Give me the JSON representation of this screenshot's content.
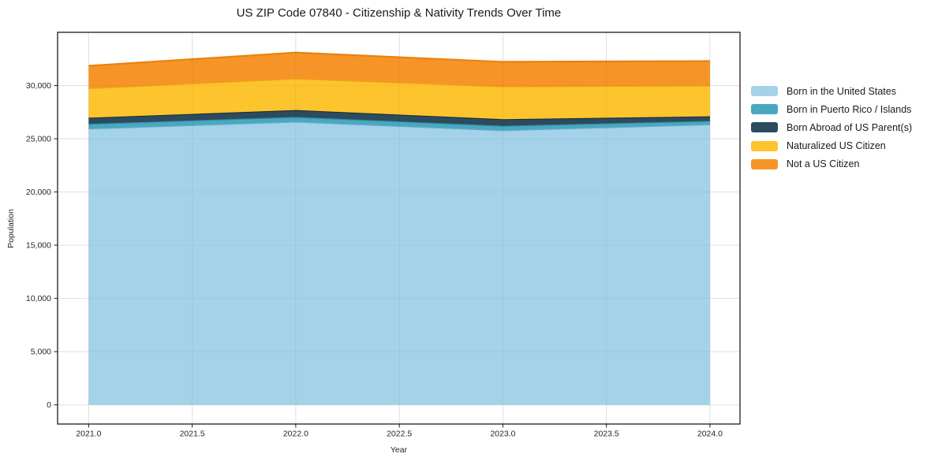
{
  "chart_data": {
    "type": "area",
    "stacked": true,
    "title": "US ZIP Code 07840 - Citizenship & Nativity Trends Over Time",
    "xlabel": "Year",
    "ylabel": "Population",
    "x": [
      2021,
      2022,
      2023,
      2024
    ],
    "series": [
      {
        "name": "Born in the United States",
        "color": "#a3d2e9",
        "edge": "#68aacb",
        "values": [
          25950,
          26600,
          25800,
          26350
        ]
      },
      {
        "name": "Born in Puerto Rico / Islands",
        "color": "#49a8bf",
        "edge": "#2f8ba3",
        "values": [
          450,
          450,
          420,
          330
        ]
      },
      {
        "name": "Born Abroad of US Parent(s)",
        "color": "#2d4b5e",
        "edge": "#16303f",
        "values": [
          570,
          650,
          620,
          430
        ]
      },
      {
        "name": "Naturalized US Citizen",
        "color": "#fdc42d",
        "edge": "#eca511",
        "values": [
          2780,
          2950,
          3080,
          2890
        ]
      },
      {
        "name": "Not a US Citizen",
        "color": "#f79428",
        "edge": "#e8820e",
        "values": [
          2100,
          2450,
          2300,
          2300
        ]
      }
    ],
    "totals": [
      31850,
      33100,
      32220,
      32300
    ],
    "xticks": {
      "values": [
        2021.0,
        2021.5,
        2022.0,
        2022.5,
        2023.0,
        2023.5,
        2024.0
      ],
      "labels": [
        "2021.0",
        "2021.5",
        "2022.0",
        "2022.5",
        "2023.0",
        "2023.5",
        "2024.0"
      ]
    },
    "yticks": {
      "values": [
        0,
        5000,
        10000,
        15000,
        20000,
        25000,
        30000
      ],
      "labels": [
        "0",
        "5,000",
        "10,000",
        "15,000",
        "20,000",
        "25,000",
        "30,000"
      ]
    },
    "xlim": [
      2020.85,
      2024.145
    ],
    "ylim": [
      -1800,
      35000
    ],
    "grid": true,
    "legend_position": "right",
    "colors": {
      "spine": "#1c1c1c",
      "grid": "#e9e9e9",
      "tick_label": "#262626",
      "background": "#ffffff"
    }
  }
}
